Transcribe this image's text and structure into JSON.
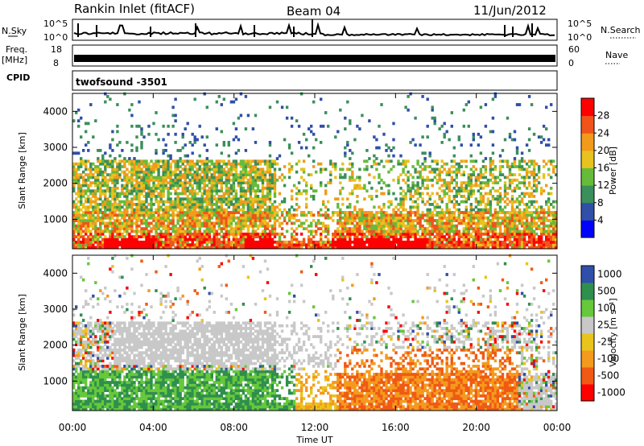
{
  "header": {
    "station": "Rankin Inlet (fitACF)",
    "beam": "Beam 04",
    "date": "11/Jun/2012"
  },
  "top_panels": {
    "nsky_label": "N.Sky",
    "nsky_ticks": [
      "10^5",
      "10^0"
    ],
    "nsearch_label": "N.Search",
    "nsearch_ticks": [
      "10^5",
      "10^0"
    ],
    "freq_label_1": "Freq.",
    "freq_label_2": "[MHz]",
    "freq_ticks": [
      "18",
      "8"
    ],
    "nave_label": "Nave",
    "nave_ticks": [
      "60",
      "0"
    ],
    "cpid_label": "CPID",
    "cpid_value": "twofsound  -3501"
  },
  "colors": {
    "power_scale": [
      "#0000ff",
      "#2f4fa8",
      "#3a8f5a",
      "#66bb3a",
      "#e8c21e",
      "#f29a1c",
      "#f0541a",
      "#ff0000"
    ],
    "velocity_scale": [
      "#ff0000",
      "#f05a14",
      "#f49a1e",
      "#e9c41c",
      "#c8c8c8",
      "#66c83a",
      "#2f8f4e",
      "#2f4fa8"
    ]
  },
  "chart_data": [
    {
      "type": "heatmap",
      "name": "power-panel",
      "ylabel": "Slant Range [km]",
      "ylim": [
        180,
        4500
      ],
      "yticks": [
        "1000",
        "2000",
        "3000",
        "4000"
      ],
      "yticks_values": [
        1000,
        2000,
        3000,
        4000
      ],
      "xlim": [
        0,
        24
      ],
      "colorbar_label": "Power [dB]",
      "colorbar_range": [
        0,
        32
      ],
      "colorbar_ticks": [
        "4",
        "8",
        "12",
        "16",
        "20",
        "24",
        "28"
      ],
      "colorbar_tick_values": [
        4,
        8,
        12,
        16,
        20,
        24,
        28
      ]
    },
    {
      "type": "heatmap",
      "name": "velocity-panel",
      "xlabel": "Time UT",
      "ylabel": "Slant Range [km]",
      "ylim": [
        180,
        4500
      ],
      "yticks": [
        "1000",
        "2000",
        "3000",
        "4000"
      ],
      "yticks_values": [
        1000,
        2000,
        3000,
        4000
      ],
      "xlim": [
        0,
        24
      ],
      "xticks": [
        "00:00",
        "04:00",
        "08:00",
        "12:00",
        "16:00",
        "20:00",
        "00:00"
      ],
      "xticks_values": [
        0,
        4,
        8,
        12,
        16,
        20,
        24
      ],
      "colorbar_label": "Velocity [m s⁻¹]",
      "colorbar_ticks": [
        "1000",
        "500",
        "100",
        "25",
        "-25",
        "-100",
        "-500",
        "-1000"
      ]
    }
  ]
}
